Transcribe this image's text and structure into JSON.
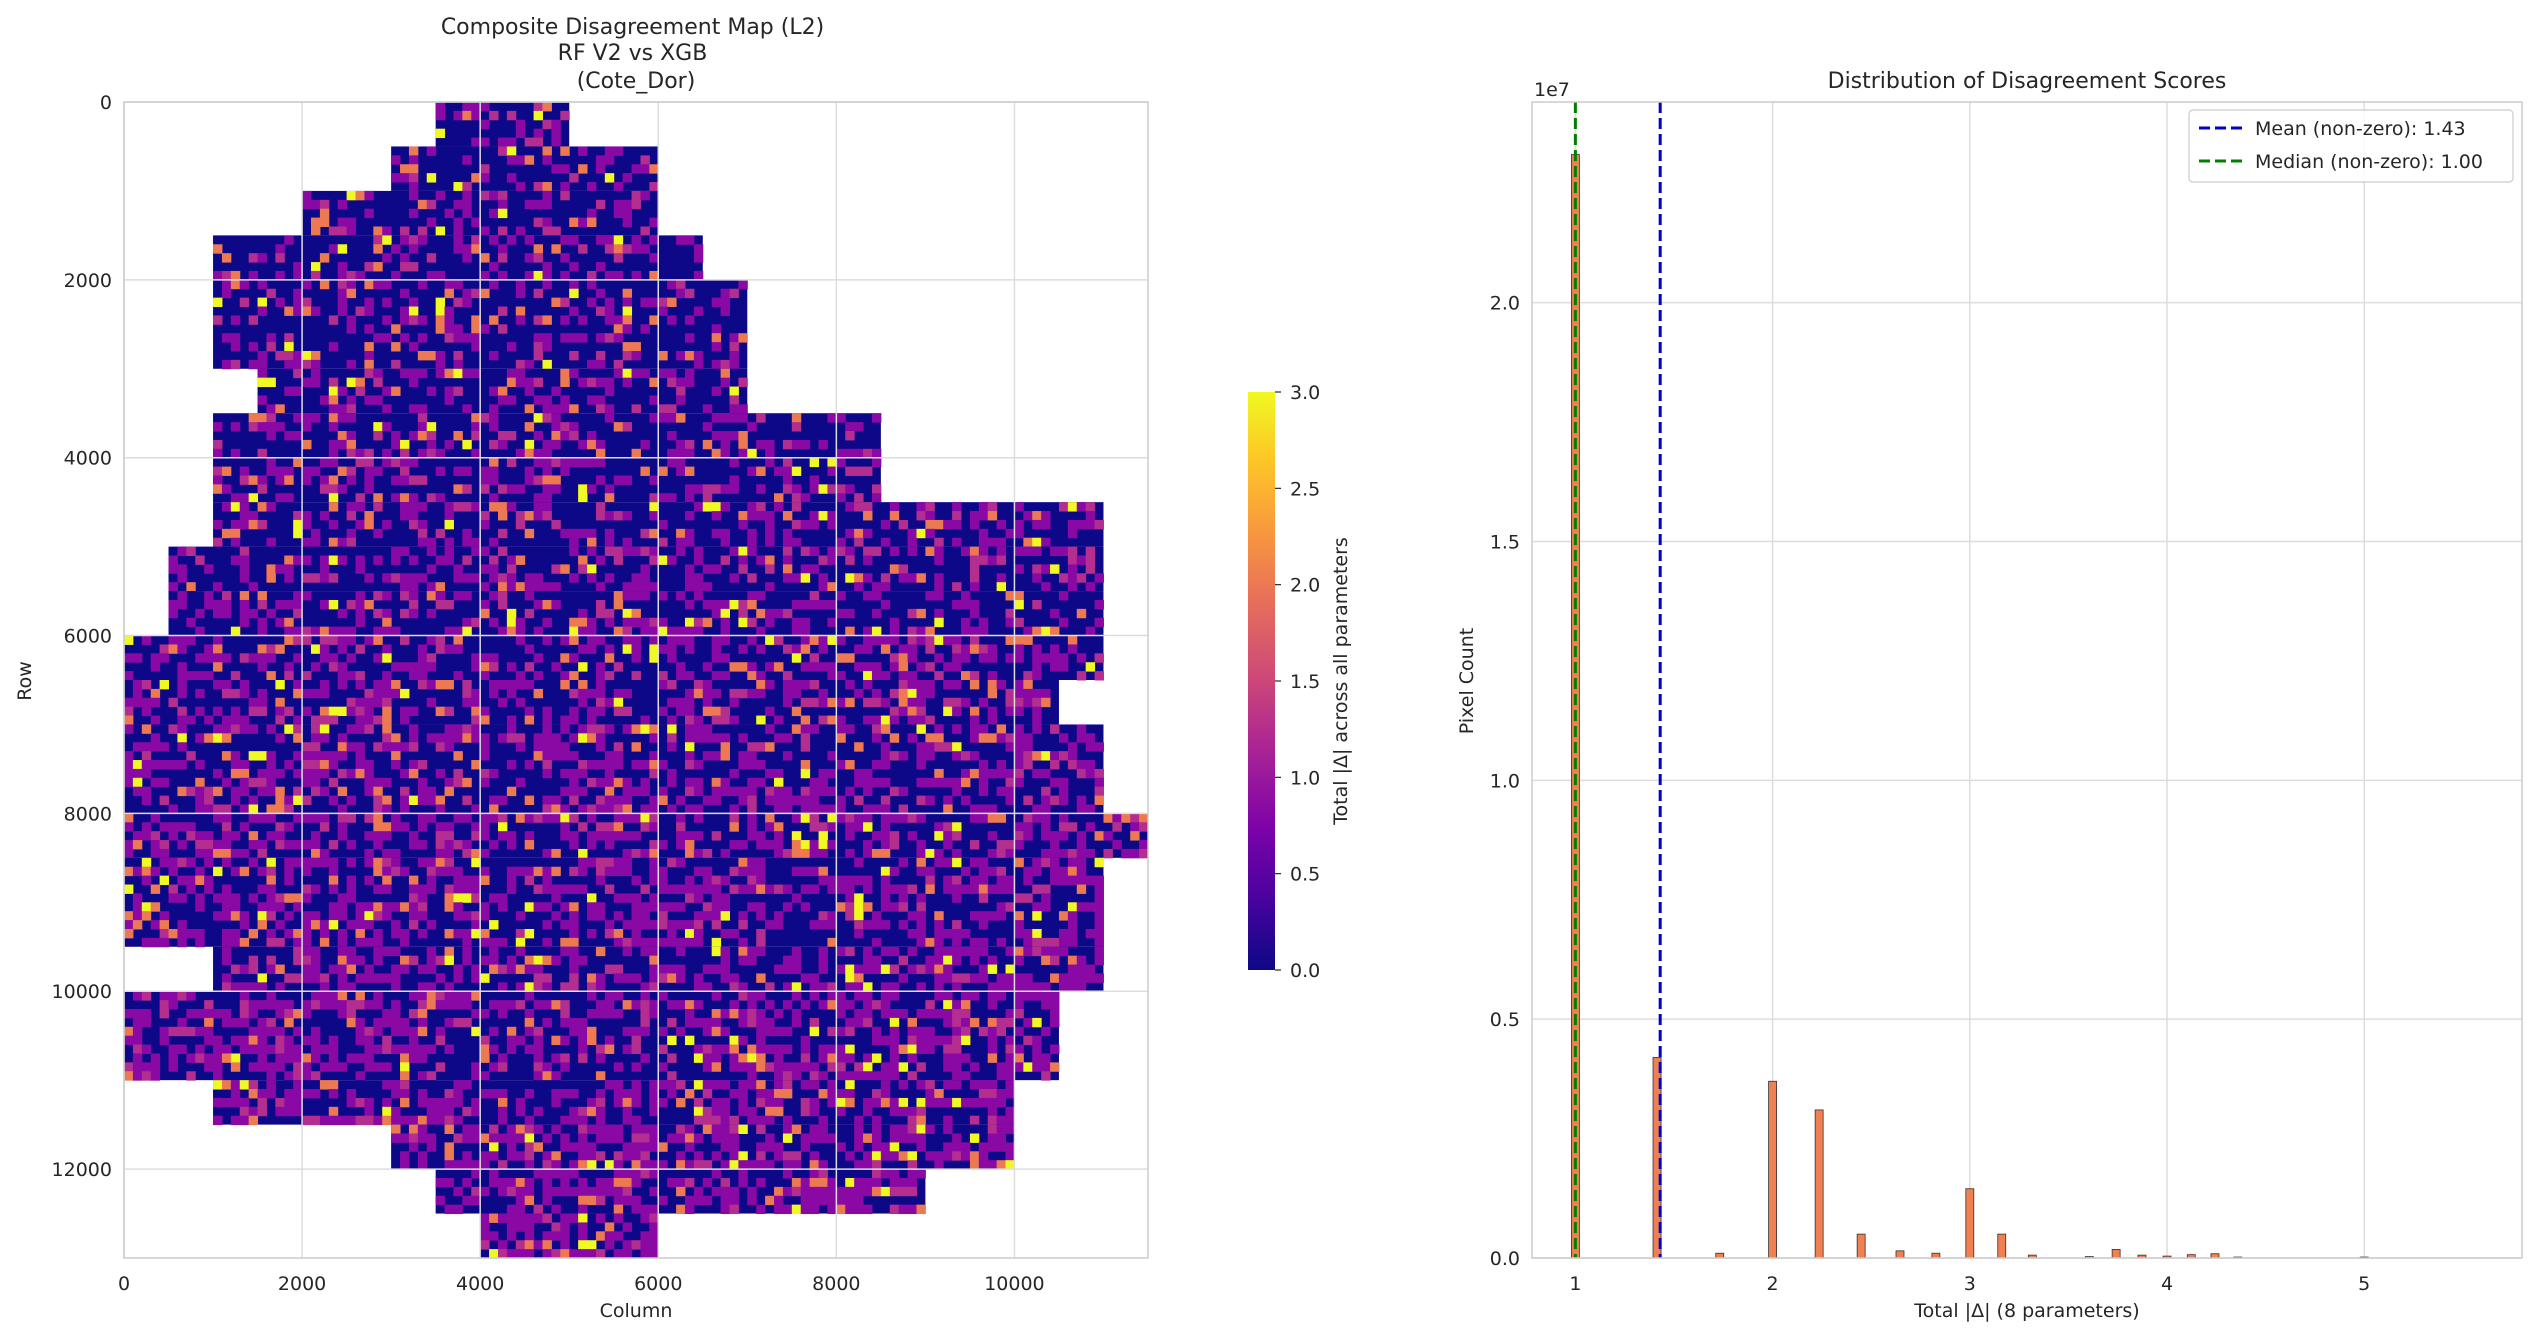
{
  "chart_data": [
    {
      "type": "heatmap",
      "title": "Composite Disagreement Map (L2)\nRF V2 vs XGB\n(Cote_Dor)",
      "xlabel": "Column",
      "ylabel": "Row",
      "xlim": [
        0,
        11500
      ],
      "ylim": [
        13000,
        0
      ],
      "xticks": [
        0,
        2000,
        4000,
        6000,
        8000,
        10000
      ],
      "yticks": [
        0,
        2000,
        4000,
        6000,
        8000,
        10000,
        12000
      ],
      "colormap": "plasma",
      "colorbar": {
        "label": "Total |Δ| across all parameters",
        "range": [
          0,
          3.0
        ],
        "ticks": [
          "0.0",
          "0.5",
          "1.0",
          "1.5",
          "2.0",
          "2.5",
          "3.0"
        ]
      },
      "grid": true
    },
    {
      "type": "bar",
      "title": "Distribution of Disagreement Scores",
      "xlabel": "Total |Δ| (8 parameters)",
      "ylabel": "Pixel Count",
      "y_offset_label": "1e7",
      "xlim": [
        0.78,
        5.8
      ],
      "ylim": [
        0,
        2.42
      ],
      "xticks": [
        1,
        2,
        3,
        4,
        5
      ],
      "yticks": [
        "0.0",
        "0.5",
        "1.0",
        "1.5",
        "2.0"
      ],
      "bar_color": "#f07f52",
      "bins": [
        {
          "x": 1.0,
          "value": 2.31
        },
        {
          "x": 1.414,
          "value": 0.42
        },
        {
          "x": 1.732,
          "value": 0.01
        },
        {
          "x": 2.0,
          "value": 0.37
        },
        {
          "x": 2.236,
          "value": 0.31
        },
        {
          "x": 2.449,
          "value": 0.05
        },
        {
          "x": 2.646,
          "value": 0.015
        },
        {
          "x": 2.828,
          "value": 0.01
        },
        {
          "x": 3.0,
          "value": 0.145
        },
        {
          "x": 3.162,
          "value": 0.05
        },
        {
          "x": 3.317,
          "value": 0.006
        },
        {
          "x": 3.606,
          "value": 0.003
        },
        {
          "x": 3.742,
          "value": 0.018
        },
        {
          "x": 3.873,
          "value": 0.006
        },
        {
          "x": 4.0,
          "value": 0.004
        },
        {
          "x": 4.123,
          "value": 0.007
        },
        {
          "x": 4.243,
          "value": 0.009
        },
        {
          "x": 4.359,
          "value": 0.002
        },
        {
          "x": 5.0,
          "value": 0.002
        }
      ],
      "lines": [
        {
          "name": "Mean (non-zero): 1.43",
          "x": 1.43,
          "color": "#0000cc"
        },
        {
          "name": "Median (non-zero): 1.00",
          "x": 1.0,
          "color": "#008000"
        }
      ],
      "legend_position": "top-right",
      "grid": true
    }
  ]
}
